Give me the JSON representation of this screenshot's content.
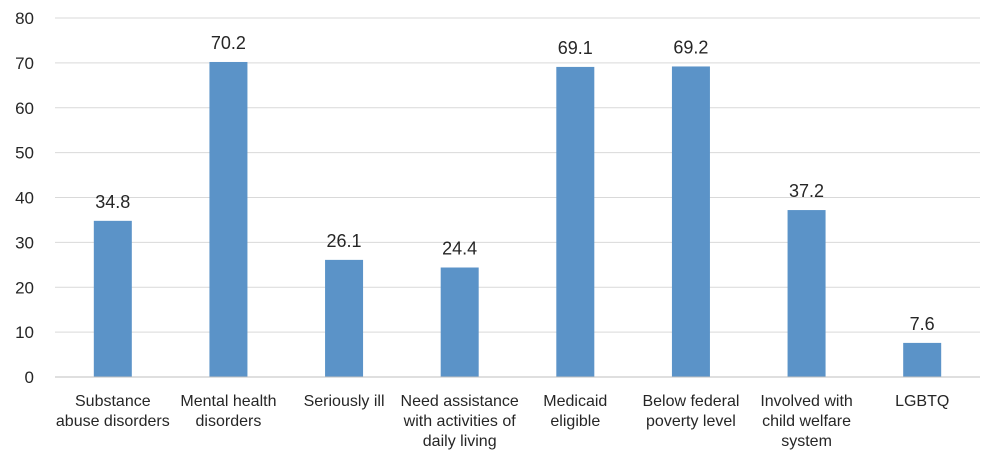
{
  "chart_data": {
    "type": "bar",
    "title": "",
    "xlabel": "",
    "ylabel": "",
    "ylim": [
      0,
      80
    ],
    "yticks": [
      0,
      10,
      20,
      30,
      40,
      50,
      60,
      70,
      80
    ],
    "grid": true,
    "legend": "none",
    "bar_color": "#5b93c8",
    "categories": [
      [
        "Substance",
        "abuse disorders"
      ],
      [
        "Mental health",
        "disorders"
      ],
      [
        "Seriously ill"
      ],
      [
        "Need assistance",
        "with activities of",
        "daily living"
      ],
      [
        "Medicaid",
        "eligible"
      ],
      [
        "Below federal",
        "poverty level"
      ],
      [
        "Involved with",
        "child welfare",
        "system"
      ],
      [
        "LGBTQ"
      ]
    ],
    "values": [
      34.8,
      70.2,
      26.1,
      24.4,
      69.1,
      69.2,
      37.2,
      7.6
    ],
    "data_labels": [
      "34.8",
      "70.2",
      "26.1",
      "24.4",
      "69.1",
      "69.2",
      "37.2",
      "7.6"
    ]
  }
}
